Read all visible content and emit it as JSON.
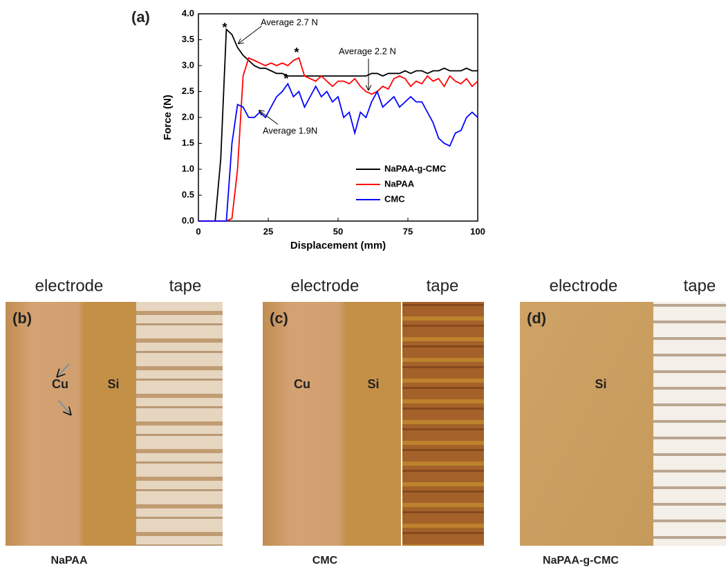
{
  "chart_data": {
    "type": "line",
    "panel_label": "(a)",
    "xlabel": "Displacement (mm)",
    "ylabel": "Force (N)",
    "x": [
      0,
      2,
      4,
      6,
      8,
      10,
      12,
      14,
      16,
      18,
      20,
      22,
      24,
      26,
      28,
      30,
      32,
      34,
      36,
      38,
      40,
      42,
      44,
      46,
      48,
      50,
      52,
      54,
      56,
      58,
      60,
      62,
      64,
      66,
      68,
      70,
      72,
      74,
      76,
      78,
      80,
      82,
      84,
      86,
      88,
      90,
      92,
      94,
      96,
      98,
      100
    ],
    "series": [
      {
        "name": "NaPAA-g-CMC",
        "color": "#000000",
        "values": [
          0,
          0,
          0,
          0,
          1.2,
          3.7,
          3.6,
          3.35,
          3.2,
          3.1,
          3.0,
          2.95,
          2.95,
          2.9,
          2.85,
          2.85,
          2.8,
          2.8,
          2.8,
          2.8,
          2.8,
          2.8,
          2.8,
          2.8,
          2.8,
          2.8,
          2.8,
          2.8,
          2.8,
          2.8,
          2.8,
          2.85,
          2.85,
          2.8,
          2.85,
          2.85,
          2.85,
          2.9,
          2.85,
          2.9,
          2.9,
          2.85,
          2.9,
          2.9,
          2.95,
          2.9,
          2.9,
          2.9,
          2.95,
          2.9,
          2.9
        ]
      },
      {
        "name": "NaPAA",
        "color": "#ff0000",
        "values": [
          0,
          0,
          0,
          0,
          0,
          0,
          0.05,
          1.0,
          2.8,
          3.15,
          3.1,
          3.05,
          3.0,
          3.05,
          3.0,
          3.05,
          3.0,
          3.1,
          3.15,
          2.8,
          2.75,
          2.7,
          2.8,
          2.7,
          2.6,
          2.7,
          2.7,
          2.65,
          2.75,
          2.6,
          2.5,
          2.45,
          2.5,
          2.6,
          2.55,
          2.75,
          2.8,
          2.75,
          2.6,
          2.7,
          2.65,
          2.8,
          2.7,
          2.75,
          2.6,
          2.8,
          2.7,
          2.65,
          2.75,
          2.6,
          2.7
        ]
      },
      {
        "name": "CMC",
        "color": "#0000ff",
        "values": [
          0,
          0,
          0,
          0,
          0,
          0,
          1.5,
          2.25,
          2.2,
          2.0,
          2.0,
          2.1,
          2.0,
          2.2,
          2.4,
          2.5,
          2.65,
          2.4,
          2.5,
          2.2,
          2.4,
          2.6,
          2.4,
          2.5,
          2.3,
          2.4,
          2.0,
          2.1,
          1.7,
          2.1,
          2.0,
          2.3,
          2.5,
          2.2,
          2.3,
          2.4,
          2.2,
          2.3,
          2.4,
          2.3,
          2.3,
          2.1,
          1.9,
          1.6,
          1.5,
          1.45,
          1.7,
          1.75,
          2.0,
          2.1,
          2.0
        ]
      }
    ],
    "xlim": [
      0,
      100
    ],
    "xticks": [
      0,
      25,
      50,
      75,
      100
    ],
    "ylim": [
      0,
      4
    ],
    "yticks": [
      {
        "value": 0,
        "label": "0.0"
      },
      0.5,
      {
        "value": 1,
        "label": "1.0"
      },
      1.5,
      {
        "value": 2,
        "label": "2.0"
      },
      2.5,
      {
        "value": 3,
        "label": "3.0"
      },
      3.5,
      {
        "value": 4,
        "label": "4.0"
      }
    ],
    "annotations": [
      "Average 2.7 N",
      "Average 2.2 N",
      "Average 1.9N",
      "*",
      "*",
      "*"
    ],
    "legend": "lower right"
  },
  "panels": [
    {
      "label": "(b)",
      "electrode": "electrode",
      "tape": "tape",
      "marks": [
        "Cu",
        "Si"
      ],
      "caption": "NaPAA"
    },
    {
      "label": "(c)",
      "electrode": "electrode",
      "tape": "tape",
      "marks": [
        "Cu",
        "Si"
      ],
      "caption": "CMC"
    },
    {
      "label": "(d)",
      "electrode": "electrode",
      "tape": "tape",
      "marks": [
        "Si"
      ],
      "caption": "NaPAA-g-CMC"
    }
  ]
}
